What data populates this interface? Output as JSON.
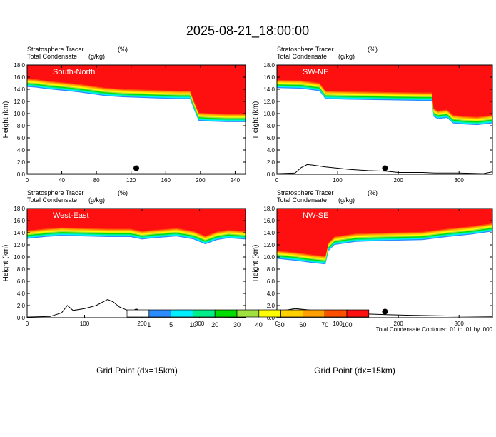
{
  "title": "2025-08-21_18:00:00",
  "colors": {
    "levels": [
      "#ffffff",
      "#2b8cff",
      "#00eeff",
      "#00ee88",
      "#00dd00",
      "#a0e040",
      "#ffff00",
      "#ffd000",
      "#ffa000",
      "#ff5000",
      "#ff1010"
    ],
    "contour": "#000000"
  },
  "footnote": "Total Condensate Contours: .01 to .01 by .000",
  "chart_data": {
    "type": "contour-cross-section",
    "y_axis": {
      "label": "Height (km)",
      "ylim": [
        0,
        18
      ],
      "ticks": [
        "0.0",
        "2.0",
        "4.0",
        "6.0",
        "8.0",
        "10.0",
        "12.0",
        "14.0",
        "16.0",
        "18.0"
      ]
    },
    "x_axis_label": "Grid Point (dx=15km)",
    "legend": {
      "position": "bottom-center",
      "labels": [
        "1",
        "5",
        "10",
        "20",
        "30",
        "40",
        "50",
        "60",
        "70",
        "100"
      ]
    },
    "panels": [
      {
        "name": "South-North",
        "label_left_1": "Stratosphere Tracer",
        "label_right_1": "(%)",
        "label_left_2": "Total Condensate",
        "label_right_2": "(g/kg)",
        "xlim": [
          0,
          252
        ],
        "xticks": [
          "0",
          "40",
          "80",
          "120",
          "160",
          "200",
          "240"
        ],
        "tropopause_km": [
          [
            0,
            15.9
          ],
          [
            10,
            15.8
          ],
          [
            25,
            15.5
          ],
          [
            40,
            15.3
          ],
          [
            60,
            15.0
          ],
          [
            75,
            14.7
          ],
          [
            90,
            14.4
          ],
          [
            110,
            14.2
          ],
          [
            130,
            14.1
          ],
          [
            150,
            14.0
          ],
          [
            175,
            13.9
          ],
          [
            188,
            13.9
          ],
          [
            193,
            12.0
          ],
          [
            198,
            10.3
          ],
          [
            210,
            10.2
          ],
          [
            230,
            10.1
          ],
          [
            252,
            10.1
          ]
        ],
        "terrain_km": [
          [
            0,
            0.1
          ],
          [
            252,
            0.1
          ]
        ],
        "marker_x": 126,
        "contour_label": ".01"
      },
      {
        "name": "SW-NE",
        "label_left_1": "Stratosphere Tracer",
        "label_right_1": "(%)",
        "label_left_2": "Total Condensate",
        "label_right_2": "(g/kg)",
        "xlim": [
          0,
          355
        ],
        "xticks": [
          "0",
          "100",
          "200",
          "300"
        ],
        "tropopause_km": [
          [
            0,
            15.7
          ],
          [
            40,
            15.6
          ],
          [
            70,
            15.2
          ],
          [
            80,
            13.9
          ],
          [
            120,
            13.8
          ],
          [
            180,
            13.7
          ],
          [
            240,
            13.6
          ],
          [
            255,
            13.6
          ],
          [
            258,
            11.0
          ],
          [
            265,
            10.6
          ],
          [
            280,
            10.8
          ],
          [
            290,
            9.9
          ],
          [
            310,
            9.7
          ],
          [
            330,
            9.6
          ],
          [
            355,
            9.9
          ]
        ],
        "terrain_km": [
          [
            0,
            0.1
          ],
          [
            30,
            0.2
          ],
          [
            40,
            1.1
          ],
          [
            50,
            1.6
          ],
          [
            60,
            1.5
          ],
          [
            80,
            1.2
          ],
          [
            100,
            1.0
          ],
          [
            120,
            0.8
          ],
          [
            150,
            0.6
          ],
          [
            180,
            0.5
          ],
          [
            200,
            0.3
          ],
          [
            240,
            0.3
          ],
          [
            260,
            0.2
          ],
          [
            300,
            0.2
          ],
          [
            340,
            0.1
          ],
          [
            355,
            0.4
          ]
        ],
        "marker_x": 178,
        "contour_label": ".01"
      },
      {
        "name": "West-East",
        "label_left_1": "Stratosphere Tracer",
        "label_right_1": "(%)",
        "label_left_2": "Total Condensate",
        "label_right_2": "(g/kg)",
        "xlim": [
          0,
          380
        ],
        "xticks": [
          "0",
          "100",
          "200",
          "300"
        ],
        "tropopause_km": [
          [
            0,
            14.5
          ],
          [
            30,
            14.8
          ],
          [
            60,
            15.0
          ],
          [
            100,
            14.9
          ],
          [
            140,
            14.8
          ],
          [
            180,
            14.8
          ],
          [
            200,
            14.4
          ],
          [
            220,
            14.6
          ],
          [
            260,
            14.9
          ],
          [
            290,
            14.4
          ],
          [
            310,
            13.6
          ],
          [
            330,
            14.3
          ],
          [
            350,
            14.6
          ],
          [
            380,
            14.4
          ]
        ],
        "terrain_km": [
          [
            0,
            0.1
          ],
          [
            40,
            0.2
          ],
          [
            60,
            0.8
          ],
          [
            70,
            2.0
          ],
          [
            80,
            1.2
          ],
          [
            100,
            1.5
          ],
          [
            120,
            2.0
          ],
          [
            140,
            3.0
          ],
          [
            150,
            2.6
          ],
          [
            160,
            1.8
          ],
          [
            175,
            1.2
          ],
          [
            190,
            0.8
          ],
          [
            220,
            0.4
          ],
          [
            260,
            0.3
          ],
          [
            300,
            0.3
          ],
          [
            320,
            0.2
          ],
          [
            380,
            0.1
          ]
        ],
        "marker_x": 190,
        "contour_label": ".01"
      },
      {
        "name": "NW-SE",
        "label_left_1": "Stratosphere Tracer",
        "label_right_1": "(%)",
        "label_left_2": "Total Condensate",
        "label_right_2": "(g/kg)",
        "xlim": [
          0,
          355
        ],
        "xticks": [
          "0",
          "100",
          "200",
          "300"
        ],
        "tropopause_km": [
          [
            0,
            11.2
          ],
          [
            30,
            10.9
          ],
          [
            60,
            10.5
          ],
          [
            80,
            10.3
          ],
          [
            85,
            12.5
          ],
          [
            95,
            13.5
          ],
          [
            130,
            14.0
          ],
          [
            160,
            14.1
          ],
          [
            200,
            14.2
          ],
          [
            240,
            14.3
          ],
          [
            280,
            14.8
          ],
          [
            320,
            15.2
          ],
          [
            355,
            15.7
          ]
        ],
        "terrain_km": [
          [
            0,
            1.0
          ],
          [
            30,
            1.5
          ],
          [
            60,
            1.2
          ],
          [
            90,
            1.0
          ],
          [
            120,
            0.8
          ],
          [
            150,
            0.6
          ],
          [
            180,
            0.5
          ],
          [
            220,
            0.4
          ],
          [
            280,
            0.3
          ],
          [
            355,
            0.2
          ]
        ],
        "marker_x": 178,
        "contour_label": ".01"
      }
    ]
  }
}
